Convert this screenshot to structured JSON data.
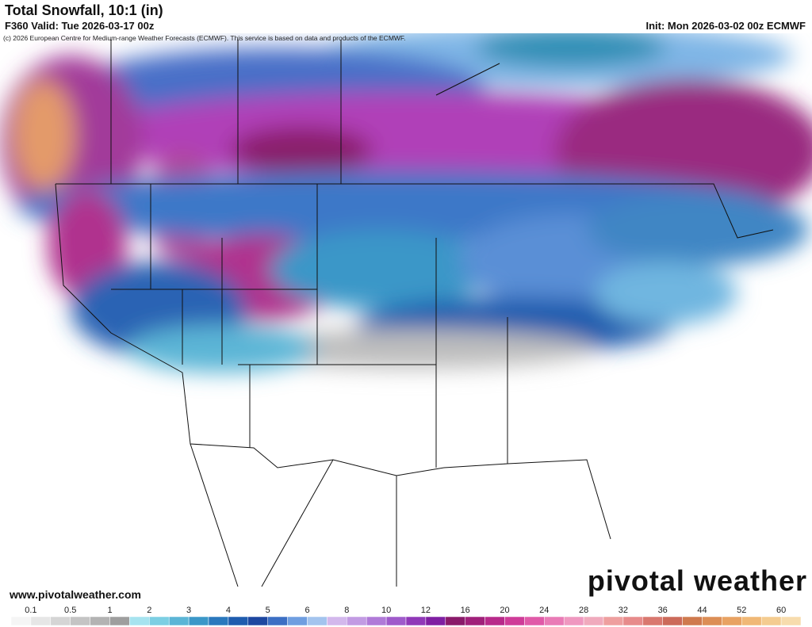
{
  "header": {
    "title": "Total Snowfall, 10:1 (in)",
    "valid": "F360 Valid: Tue 2026-03-17 00z",
    "init": "Init: Mon 2026-03-02 00z ECMWF",
    "copyright": "(c) 2026 European Centre for Medium-range Weather Forecasts (ECMWF). This service is based on data and products of the ECMWF."
  },
  "footer": {
    "website": "www.pivotalweather.com",
    "logo": "pivotal weather"
  },
  "colorbar": {
    "labels": [
      "0.1",
      "0.5",
      "1",
      "2",
      "3",
      "4",
      "5",
      "6",
      "8",
      "10",
      "12",
      "16",
      "20",
      "24",
      "28",
      "32",
      "36",
      "44",
      "52",
      "60"
    ],
    "colors": [
      "#f5f5f5",
      "#e6e6e6",
      "#d5d5d5",
      "#c4c4c4",
      "#b3b3b3",
      "#9e9e9e",
      "#a6e3ef",
      "#7ccfe3",
      "#5bb5d6",
      "#3b97c8",
      "#2a78bd",
      "#1f5cae",
      "#1d47a0",
      "#3c6fc4",
      "#6f9ee0",
      "#a3c4ee",
      "#d3b8ec",
      "#c29be3",
      "#b07ad8",
      "#9f5acb",
      "#9038b8",
      "#7f1fa2",
      "#8a1a6a",
      "#a0207a",
      "#b82a8a",
      "#cf3c98",
      "#e05aa8",
      "#e97bb6",
      "#ef98c0",
      "#f0aabd",
      "#ee9f9f",
      "#e78b8b",
      "#d9786f",
      "#cc6a5a",
      "#cf7a4e",
      "#dc8e55",
      "#e8a262",
      "#f0b876",
      "#f4cc90",
      "#f7dcad"
    ]
  }
}
